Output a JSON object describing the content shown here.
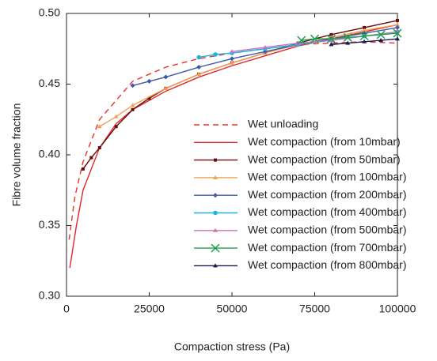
{
  "chart_data": {
    "type": "line",
    "xlabel": "Compaction stress (Pa)",
    "ylabel": "Fibre volume fraction",
    "xlim": [
      0,
      100000
    ],
    "ylim": [
      0.3,
      0.5
    ],
    "xticks": [
      0,
      25000,
      50000,
      75000,
      100000
    ],
    "yticks": [
      {
        "value": 0.3,
        "label": "0.30"
      },
      0.35,
      {
        "value": 0.4,
        "label": "0.40"
      },
      0.45,
      {
        "value": 0.5,
        "label": "0.50"
      }
    ],
    "series": [
      {
        "name": "Wet unloading",
        "color": "#e8322a",
        "dash": true,
        "marker": "none",
        "x": [
          800,
          2500,
          5000,
          10000,
          20000,
          30000,
          40000,
          50000,
          60000,
          70000,
          80000,
          90000,
          100000
        ],
        "values": [
          0.34,
          0.37,
          0.395,
          0.425,
          0.452,
          0.462,
          0.468,
          0.472,
          0.475,
          0.478,
          0.479,
          0.48,
          0.479
        ]
      },
      {
        "name": "Wet compaction (from 10mbar)",
        "color": "#e0262a",
        "marker": "none",
        "x": [
          1000,
          3000,
          5000,
          10000,
          15000,
          20000,
          30000,
          40000,
          50000,
          60000,
          70000,
          80000,
          90000,
          100000
        ],
        "values": [
          0.32,
          0.35,
          0.375,
          0.405,
          0.422,
          0.432,
          0.445,
          0.455,
          0.463,
          0.47,
          0.477,
          0.482,
          0.487,
          0.492
        ]
      },
      {
        "name": "Wet compaction (from 50mbar)",
        "color": "#6b0a0a",
        "marker": "square",
        "x": [
          5000,
          7500,
          10000,
          15000,
          20000,
          25000,
          30000,
          40000,
          50000,
          60000,
          70000,
          80000,
          90000,
          100000
        ],
        "values": [
          0.39,
          0.398,
          0.405,
          0.42,
          0.432,
          0.44,
          0.447,
          0.457,
          0.465,
          0.472,
          0.479,
          0.485,
          0.49,
          0.495
        ]
      },
      {
        "name": "Wet compaction (from 100mbar)",
        "color": "#f0a050",
        "marker": "triangle",
        "x": [
          10000,
          15000,
          20000,
          30000,
          40000,
          50000,
          60000,
          70000,
          80000,
          90000,
          100000
        ],
        "values": [
          0.42,
          0.427,
          0.435,
          0.447,
          0.457,
          0.465,
          0.472,
          0.478,
          0.483,
          0.488,
          0.492
        ]
      },
      {
        "name": "Wet compaction (from 200mbar)",
        "color": "#3c5aa8",
        "marker": "diamond",
        "x": [
          20000,
          25000,
          30000,
          40000,
          50000,
          60000,
          70000,
          80000,
          90000,
          100000
        ],
        "values": [
          0.449,
          0.452,
          0.455,
          0.462,
          0.468,
          0.473,
          0.478,
          0.482,
          0.486,
          0.49
        ]
      },
      {
        "name": "Wet compaction (from 400mbar)",
        "color": "#1eb4dc",
        "marker": "circle",
        "x": [
          40000,
          45000,
          50000,
          60000,
          70000,
          80000,
          90000,
          100000
        ],
        "values": [
          0.469,
          0.471,
          0.472,
          0.475,
          0.478,
          0.481,
          0.484,
          0.487
        ]
      },
      {
        "name": "Wet compaction (from 500mbar)",
        "color": "#d070c0",
        "marker": "triangle",
        "x": [
          50000,
          60000,
          70000,
          80000,
          90000,
          100000
        ],
        "values": [
          0.473,
          0.476,
          0.479,
          0.481,
          0.484,
          0.487
        ]
      },
      {
        "name": "Wet compaction (from 700mbar)",
        "color": "#1aa050",
        "marker": "x",
        "x": [
          71000,
          75000,
          80000,
          85000,
          90000,
          95000,
          100000
        ],
        "values": [
          0.481,
          0.482,
          0.482,
          0.483,
          0.484,
          0.485,
          0.486
        ]
      },
      {
        "name": "Wet compaction (from 800mbar)",
        "color": "#1a1a50",
        "marker": "triangle",
        "x": [
          80000,
          85000,
          90000,
          95000,
          100000
        ],
        "values": [
          0.478,
          0.479,
          0.48,
          0.481,
          0.482
        ]
      }
    ]
  }
}
